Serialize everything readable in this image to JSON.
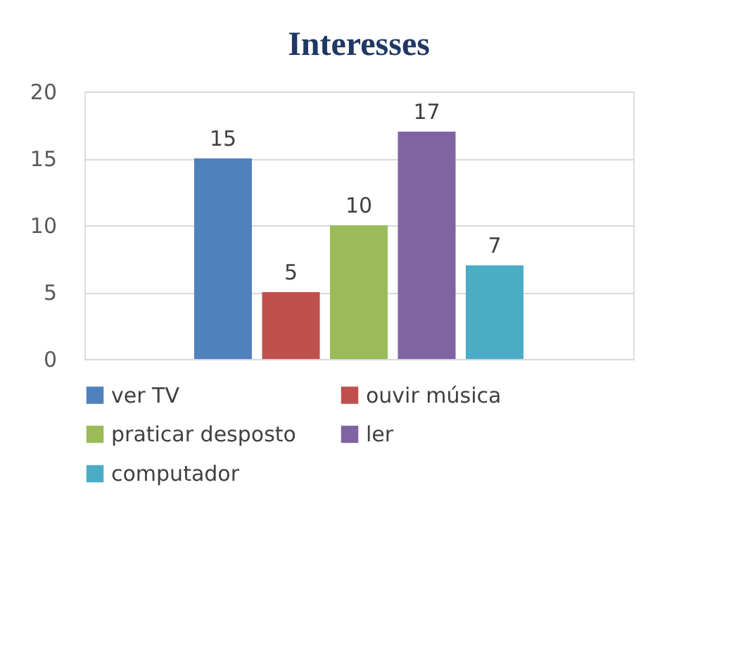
{
  "chart_data": {
    "type": "bar",
    "title": "Interesses",
    "categories": [
      null
    ],
    "series": [
      {
        "name": "ver TV",
        "color": "#4f81bd",
        "values": [
          15
        ]
      },
      {
        "name": "ouvir música",
        "color": "#c0504d",
        "values": [
          5
        ]
      },
      {
        "name": "praticar desposto",
        "color": "#9bbb59",
        "values": [
          10
        ]
      },
      {
        "name": "ler",
        "color": "#8064a2",
        "values": [
          17
        ]
      },
      {
        "name": "computador",
        "color": "#4bacc6",
        "values": [
          7
        ]
      }
    ],
    "ylim": [
      0,
      20
    ],
    "yticks": [
      0,
      5,
      10,
      15,
      20
    ],
    "grid": "y",
    "legend": "bottom",
    "data_labels": true
  }
}
